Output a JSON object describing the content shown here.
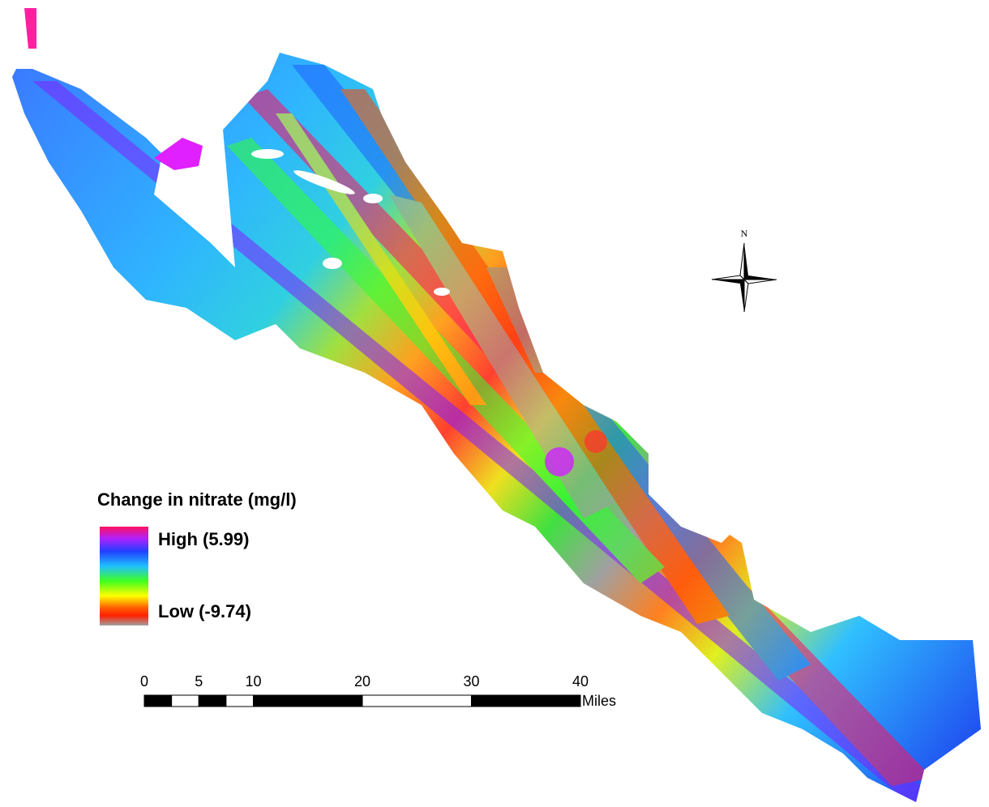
{
  "north_arrow": {
    "label": "N"
  },
  "legend": {
    "title": "Change in nitrate (mg/l)",
    "high_label": "High (5.99)",
    "low_label": "Low (-9.74)"
  },
  "scale_bar": {
    "ticks": [
      0,
      5,
      10,
      20,
      30,
      40
    ],
    "unit": "Miles"
  }
}
